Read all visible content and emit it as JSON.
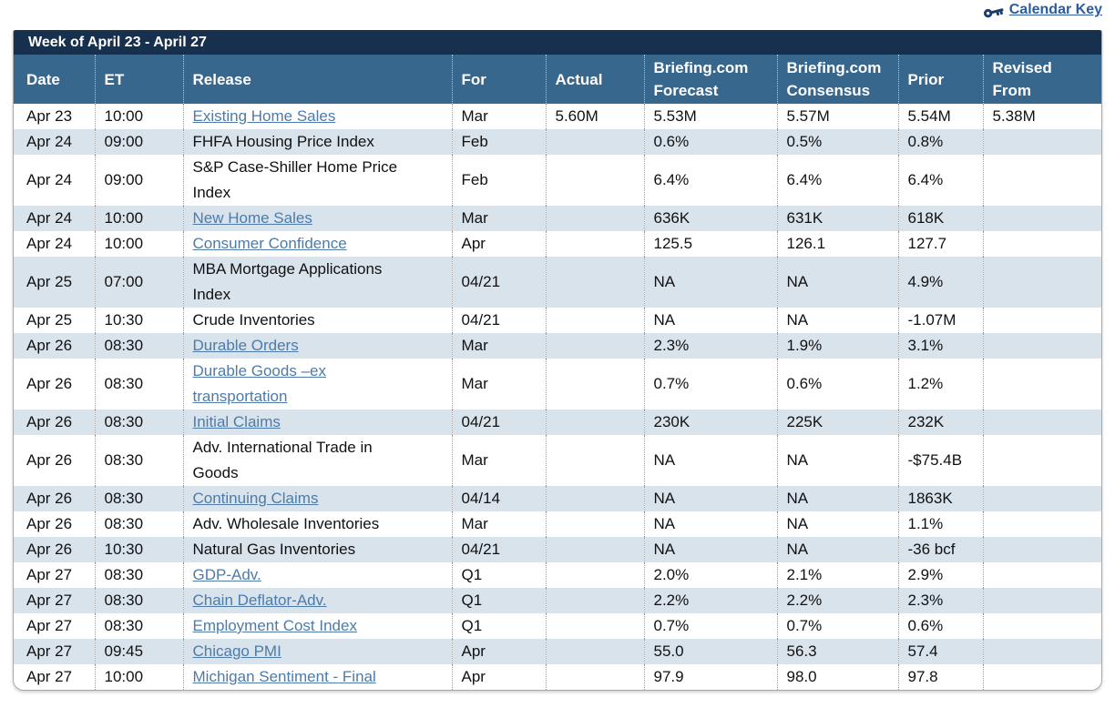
{
  "page": {
    "calendar_key": {
      "label": "Calendar Key"
    }
  },
  "table": {
    "title": "Week of April 23 - April 27",
    "columns": [
      {
        "label": "Date"
      },
      {
        "label": "ET"
      },
      {
        "label": "Release"
      },
      {
        "label": "For"
      },
      {
        "label": "Actual"
      },
      {
        "label": "Briefing.com Forecast"
      },
      {
        "label": "Briefing.com Consensus"
      },
      {
        "label": "Prior"
      },
      {
        "label": "Revised From"
      }
    ],
    "rows": [
      {
        "date": "Apr 23",
        "et": "10:00",
        "release": "Existing Home Sales",
        "link": true,
        "for": "Mar",
        "actual": "5.60M",
        "forecast": "5.53M",
        "consensus": "5.57M",
        "prior": "5.54M",
        "revised": "5.38M"
      },
      {
        "date": "Apr 24",
        "et": "09:00",
        "release": "FHFA Housing Price Index",
        "link": false,
        "for": "Feb",
        "actual": "",
        "forecast": "0.6%",
        "consensus": "0.5%",
        "prior": "0.8%",
        "revised": ""
      },
      {
        "date": "Apr 24",
        "et": "09:00",
        "release": "S&P Case-Shiller Home Price Index",
        "link": false,
        "for": "Feb",
        "actual": "",
        "forecast": "6.4%",
        "consensus": "6.4%",
        "prior": "6.4%",
        "revised": ""
      },
      {
        "date": "Apr 24",
        "et": "10:00",
        "release": "New Home Sales",
        "link": true,
        "for": "Mar",
        "actual": "",
        "forecast": "636K",
        "consensus": "631K",
        "prior": "618K",
        "revised": ""
      },
      {
        "date": "Apr 24",
        "et": "10:00",
        "release": "Consumer Confidence",
        "link": true,
        "for": "Apr",
        "actual": "",
        "forecast": "125.5",
        "consensus": "126.1",
        "prior": "127.7",
        "revised": ""
      },
      {
        "date": "Apr 25",
        "et": "07:00",
        "release": "MBA Mortgage Applications Index",
        "link": false,
        "for": "04/21",
        "actual": "",
        "forecast": "NA",
        "consensus": "NA",
        "prior": "4.9%",
        "revised": ""
      },
      {
        "date": "Apr 25",
        "et": "10:30",
        "release": "Crude Inventories",
        "link": false,
        "for": "04/21",
        "actual": "",
        "forecast": "NA",
        "consensus": "NA",
        "prior": "-1.07M",
        "revised": ""
      },
      {
        "date": "Apr 26",
        "et": "08:30",
        "release": "Durable Orders",
        "link": true,
        "for": "Mar",
        "actual": "",
        "forecast": "2.3%",
        "consensus": "1.9%",
        "prior": "3.1%",
        "revised": ""
      },
      {
        "date": "Apr 26",
        "et": "08:30",
        "release": "Durable Goods –ex transportation",
        "link": true,
        "for": "Mar",
        "actual": "",
        "forecast": "0.7%",
        "consensus": "0.6%",
        "prior": "1.2%",
        "revised": ""
      },
      {
        "date": "Apr 26",
        "et": "08:30",
        "release": "Initial Claims",
        "link": true,
        "for": "04/21",
        "actual": "",
        "forecast": "230K",
        "consensus": "225K",
        "prior": "232K",
        "revised": ""
      },
      {
        "date": "Apr 26",
        "et": "08:30",
        "release": "Adv. International Trade in Goods",
        "link": false,
        "for": "Mar",
        "actual": "",
        "forecast": "NA",
        "consensus": "NA",
        "prior": "-$75.4B",
        "revised": ""
      },
      {
        "date": "Apr 26",
        "et": "08:30",
        "release": "Continuing Claims",
        "link": true,
        "for": "04/14",
        "actual": "",
        "forecast": "NA",
        "consensus": "NA",
        "prior": "1863K",
        "revised": ""
      },
      {
        "date": "Apr 26",
        "et": "08:30",
        "release": "Adv. Wholesale Inventories",
        "link": false,
        "for": "Mar",
        "actual": "",
        "forecast": "NA",
        "consensus": "NA",
        "prior": "1.1%",
        "revised": ""
      },
      {
        "date": "Apr 26",
        "et": "10:30",
        "release": "Natural Gas Inventories",
        "link": false,
        "for": "04/21",
        "actual": "",
        "forecast": "NA",
        "consensus": "NA",
        "prior": "-36 bcf",
        "revised": ""
      },
      {
        "date": "Apr 27",
        "et": "08:30",
        "release": "GDP-Adv.",
        "link": true,
        "for": "Q1",
        "actual": "",
        "forecast": "2.0%",
        "consensus": "2.1%",
        "prior": "2.9%",
        "revised": ""
      },
      {
        "date": "Apr 27",
        "et": "08:30",
        "release": "Chain Deflator-Adv.",
        "link": true,
        "for": "Q1",
        "actual": "",
        "forecast": "2.2%",
        "consensus": "2.2%",
        "prior": "2.3%",
        "revised": ""
      },
      {
        "date": "Apr 27",
        "et": "08:30",
        "release": "Employment Cost Index",
        "link": true,
        "for": "Q1",
        "actual": "",
        "forecast": "0.7%",
        "consensus": "0.7%",
        "prior": "0.6%",
        "revised": ""
      },
      {
        "date": "Apr 27",
        "et": "09:45",
        "release": "Chicago PMI",
        "link": true,
        "for": "Apr",
        "actual": "",
        "forecast": "55.0",
        "consensus": "56.3",
        "prior": "57.4",
        "revised": ""
      },
      {
        "date": "Apr 27",
        "et": "10:00",
        "release": "Michigan Sentiment - Final",
        "link": true,
        "for": "Apr",
        "actual": "",
        "forecast": "97.9",
        "consensus": "98.0",
        "prior": "97.8",
        "revised": ""
      }
    ]
  },
  "colors": {
    "title_bar": "#16304e",
    "header": "#38678e",
    "row_alt": "#d9e3ec",
    "release_link": "#4e7ba7",
    "calendar_key_link": "#2b5d9e",
    "key_icon": "#1e3c6e",
    "border": "#a8a8a8"
  }
}
